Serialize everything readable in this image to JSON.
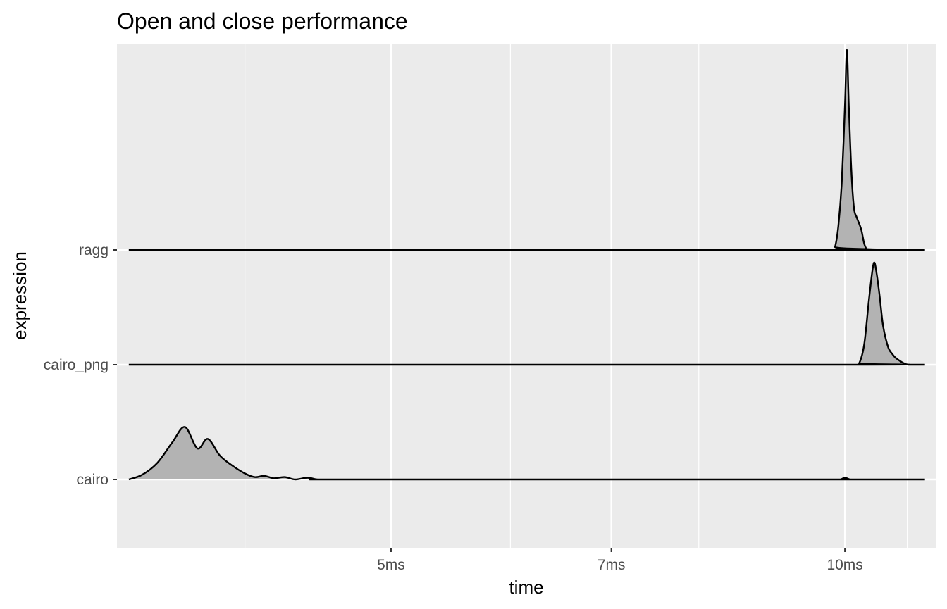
{
  "chart_data": {
    "type": "area",
    "subtype": "ridgeline-density",
    "title": "Open and close performance",
    "xlabel": "time",
    "ylabel": "expression",
    "x_scale": "log10",
    "x_unit": "ms",
    "xlim": [
      3.29,
      11.5
    ],
    "x_ticks": [
      {
        "value": 5,
        "label": "5ms"
      },
      {
        "value": 7,
        "label": "7ms"
      },
      {
        "value": 10,
        "label": "10ms"
      }
    ],
    "x_minor_ticks": [
      4,
      6,
      8,
      11
    ],
    "categories": [
      "cairo",
      "cairo_png",
      "ragg"
    ],
    "grid": true,
    "legend": "none",
    "colors": {
      "panel": "#ebebeb",
      "grid": "#ffffff",
      "fill": "#b3b3b3",
      "outline": "#000000"
    },
    "series": [
      {
        "name": "cairo",
        "x": [
          3.35,
          3.42,
          3.5,
          3.58,
          3.65,
          3.72,
          3.78,
          3.85,
          3.92,
          4.0,
          4.06,
          4.12,
          4.18,
          4.25,
          4.32,
          4.4,
          4.47,
          4.55,
          4.62,
          4.68,
          9.8,
          9.93,
          10.0,
          10.08,
          10.2,
          11.3
        ],
        "density": [
          0.0,
          0.08,
          0.28,
          0.62,
          0.88,
          0.52,
          0.68,
          0.4,
          0.24,
          0.1,
          0.04,
          0.06,
          0.02,
          0.04,
          0.0,
          0.03,
          0.0,
          0.0,
          0.0,
          0.0,
          0.0,
          0.0,
          0.03,
          0.0,
          0.0,
          0.0
        ]
      },
      {
        "name": "cairo_png",
        "x": [
          3.35,
          10.15,
          10.22,
          10.3,
          10.38,
          10.45,
          10.5,
          10.55,
          10.6,
          10.68,
          10.75,
          10.8,
          10.88,
          10.95,
          11.02,
          11.1,
          11.2,
          11.3
        ],
        "density": [
          0.0,
          0.0,
          0.02,
          0.35,
          1.15,
          1.7,
          1.5,
          1.1,
          0.65,
          0.3,
          0.18,
          0.12,
          0.06,
          0.02,
          0.0,
          0.0,
          0.0,
          0.0
        ]
      },
      {
        "name": "ragg",
        "x": [
          3.35,
          9.8,
          9.85,
          9.9,
          9.95,
          10.0,
          10.03,
          10.06,
          10.1,
          10.14,
          10.18,
          10.25,
          10.3,
          10.35,
          10.42,
          11.3
        ],
        "density": [
          0.0,
          0.0,
          0.05,
          0.4,
          1.1,
          2.4,
          3.35,
          2.4,
          1.3,
          0.7,
          0.55,
          0.35,
          0.1,
          0.0,
          0.0,
          0.0
        ]
      }
    ]
  }
}
